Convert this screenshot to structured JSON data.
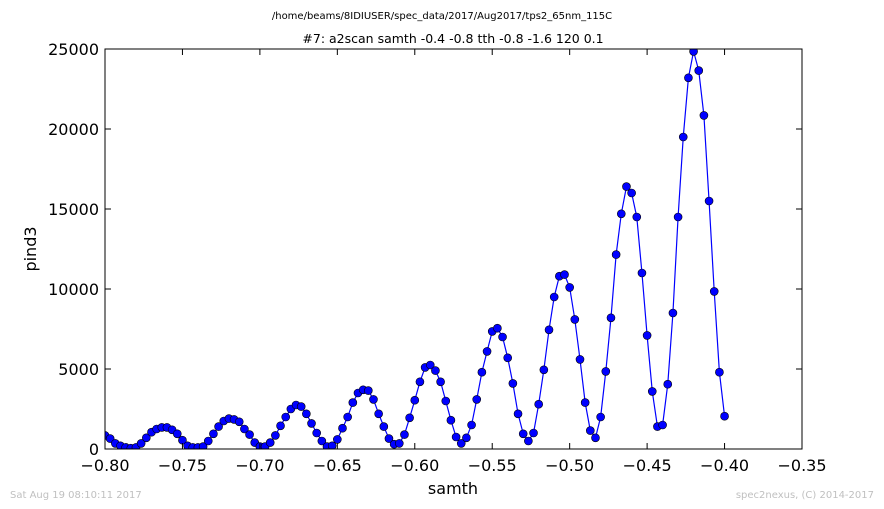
{
  "figure": {
    "path_title": "/home/beams/8IDIUSER/spec_data/2017/Aug2017/tps2_65nm_115C",
    "scan_title": "#7: a2scan  samth -0.4 -0.8  tth -0.8 -1.6  120 0.1",
    "footer_left": "Sat Aug 19 08:10:11 2017",
    "footer_right": "spec2nexus, (C) 2014-2017"
  },
  "chart_data": {
    "type": "line",
    "title": "#7: a2scan  samth -0.4 -0.8  tth -0.8 -1.6  120 0.1",
    "xlabel": "samth",
    "ylabel": "pind3",
    "xlim": [
      -0.8,
      -0.35
    ],
    "ylim": [
      0,
      25000
    ],
    "xticks": [
      -0.8,
      -0.75,
      -0.7,
      -0.65,
      -0.6,
      -0.55,
      -0.5,
      -0.45,
      -0.4,
      -0.35
    ],
    "xtick_labels": [
      "−0.80",
      "−0.75",
      "−0.70",
      "−0.65",
      "−0.60",
      "−0.55",
      "−0.50",
      "−0.45",
      "−0.40",
      "−0.35"
    ],
    "yticks": [
      0,
      5000,
      10000,
      15000,
      20000,
      25000
    ],
    "ytick_labels": [
      "0",
      "5000",
      "10000",
      "15000",
      "20000",
      "25000"
    ],
    "grid": false,
    "color": "#0000ff",
    "marker": "circle",
    "series": [
      {
        "x": [
          -0.8,
          -0.79667,
          -0.79333,
          -0.79,
          -0.78667,
          -0.78333,
          -0.78,
          -0.77667,
          -0.77333,
          -0.77,
          -0.76667,
          -0.76333,
          -0.76,
          -0.75667,
          -0.75333,
          -0.75,
          -0.74667,
          -0.74333,
          -0.74,
          -0.73667,
          -0.73333,
          -0.73,
          -0.72667,
          -0.72333,
          -0.72,
          -0.71667,
          -0.71333,
          -0.71,
          -0.70667,
          -0.70333,
          -0.7,
          -0.69667,
          -0.69333,
          -0.69,
          -0.68667,
          -0.68333,
          -0.68,
          -0.67667,
          -0.67333,
          -0.67,
          -0.66667,
          -0.66333,
          -0.66,
          -0.65667,
          -0.65333,
          -0.65,
          -0.64667,
          -0.64333,
          -0.64,
          -0.63667,
          -0.63333,
          -0.63,
          -0.62667,
          -0.62333,
          -0.62,
          -0.61667,
          -0.61333,
          -0.61,
          -0.60667,
          -0.60333,
          -0.6,
          -0.59667,
          -0.59333,
          -0.59,
          -0.58667,
          -0.58333,
          -0.58,
          -0.57667,
          -0.57333,
          -0.57,
          -0.56667,
          -0.56333,
          -0.56,
          -0.55667,
          -0.55333,
          -0.55,
          -0.54667,
          -0.54333,
          -0.54,
          -0.53667,
          -0.53333,
          -0.53,
          -0.52667,
          -0.52333,
          -0.52,
          -0.51667,
          -0.51333,
          -0.51,
          -0.50667,
          -0.50333,
          -0.5,
          -0.49667,
          -0.49333,
          -0.49,
          -0.48667,
          -0.48333,
          -0.48,
          -0.47667,
          -0.47333,
          -0.47,
          -0.46667,
          -0.46333,
          -0.46,
          -0.45667,
          -0.45333,
          -0.45,
          -0.44667,
          -0.44333,
          -0.44,
          -0.43667,
          -0.43333,
          -0.43,
          -0.42667,
          -0.42333,
          -0.42,
          -0.41667,
          -0.41333,
          -0.41,
          -0.40667,
          -0.40333,
          -0.4
        ],
        "y": [
          850,
          650,
          350,
          200,
          100,
          50,
          100,
          350,
          700,
          1050,
          1250,
          1350,
          1350,
          1200,
          950,
          550,
          200,
          100,
          100,
          150,
          500,
          950,
          1400,
          1750,
          1900,
          1850,
          1700,
          1250,
          900,
          400,
          150,
          150,
          400,
          850,
          1450,
          2000,
          2500,
          2750,
          2650,
          2200,
          1600,
          1000,
          500,
          150,
          200,
          600,
          1300,
          2000,
          2900,
          3500,
          3700,
          3650,
          3100,
          2200,
          1400,
          650,
          300,
          350,
          900,
          1950,
          3050,
          4200,
          5100,
          5250,
          4900,
          4200,
          3000,
          1800,
          750,
          350,
          700,
          1500,
          3100,
          4800,
          6100,
          7350,
          7550,
          7000,
          5700,
          4100,
          2200,
          950,
          500,
          1000,
          2800,
          4950,
          7450,
          9500,
          10800,
          10900,
          10100,
          8100,
          5600,
          2900,
          1150,
          700,
          2000,
          4850,
          8200,
          12150,
          14700,
          16400,
          16000,
          14500,
          11000,
          7100,
          3600,
          1400,
          1500,
          4050,
          8500,
          14500,
          19500,
          23200,
          24850,
          23650,
          20850,
          15500,
          9850,
          4800,
          2050
        ]
      }
    ]
  }
}
